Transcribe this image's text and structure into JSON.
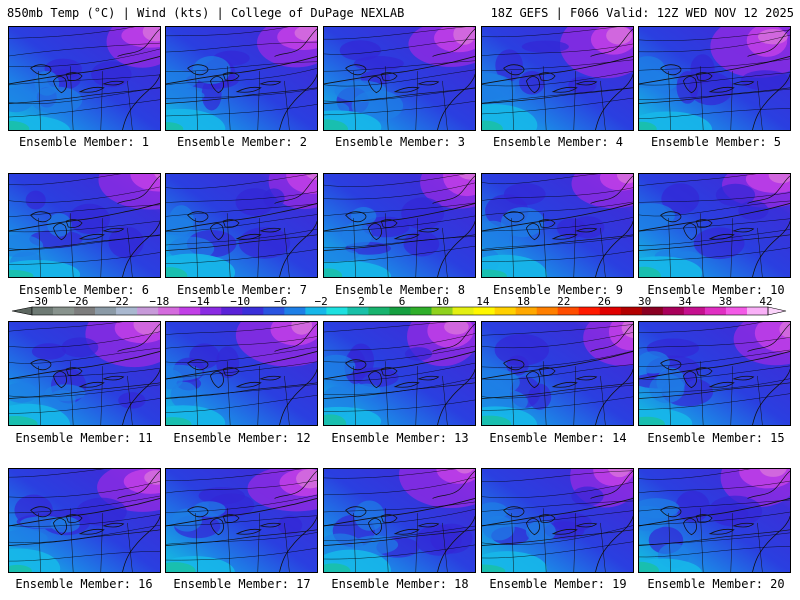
{
  "header": {
    "left": "850mb Temp (°C) | Wind (kts) | College of DuPage NEXLAB",
    "right": "18Z GEFS | F066 Valid: 12Z WED NOV 12 2025"
  },
  "members": [
    "Ensemble Member: 1",
    "Ensemble Member: 2",
    "Ensemble Member: 3",
    "Ensemble Member: 4",
    "Ensemble Member: 5",
    "Ensemble Member: 6",
    "Ensemble Member: 7",
    "Ensemble Member: 8",
    "Ensemble Member: 9",
    "Ensemble Member: 10",
    "Ensemble Member: 11",
    "Ensemble Member: 12",
    "Ensemble Member: 13",
    "Ensemble Member: 14",
    "Ensemble Member: 15",
    "Ensemble Member: 16",
    "Ensemble Member: 17",
    "Ensemble Member: 18",
    "Ensemble Member: 19",
    "Ensemble Member: 20"
  ],
  "colorbar": {
    "labels": [
      "−30",
      "−26",
      "−22",
      "−18",
      "−14",
      "−10",
      "−6",
      "−2",
      "2",
      "6",
      "10",
      "14",
      "18",
      "22",
      "26",
      "30",
      "34",
      "38",
      "42"
    ],
    "colors": [
      "#6e7a74",
      "#88938d",
      "#7d7d7d",
      "#8b9aa6",
      "#a9b8cf",
      "#c79ad9",
      "#d46bdd",
      "#c13fe6",
      "#8a2be2",
      "#5a22d8",
      "#3a2fd9",
      "#2a54e0",
      "#1e7fe6",
      "#17b7e9",
      "#1ee0e0",
      "#19c0a8",
      "#18b36e",
      "#169f40",
      "#2fae2a",
      "#8fd11d",
      "#e3ef12",
      "#fff700",
      "#ffd000",
      "#ffa800",
      "#ff7f00",
      "#ff4d00",
      "#ff1a00",
      "#e00000",
      "#b30000",
      "#8a0022",
      "#a8005a",
      "#c5108e",
      "#e02fc2",
      "#f35ae6",
      "#f9b0f7"
    ]
  }
}
